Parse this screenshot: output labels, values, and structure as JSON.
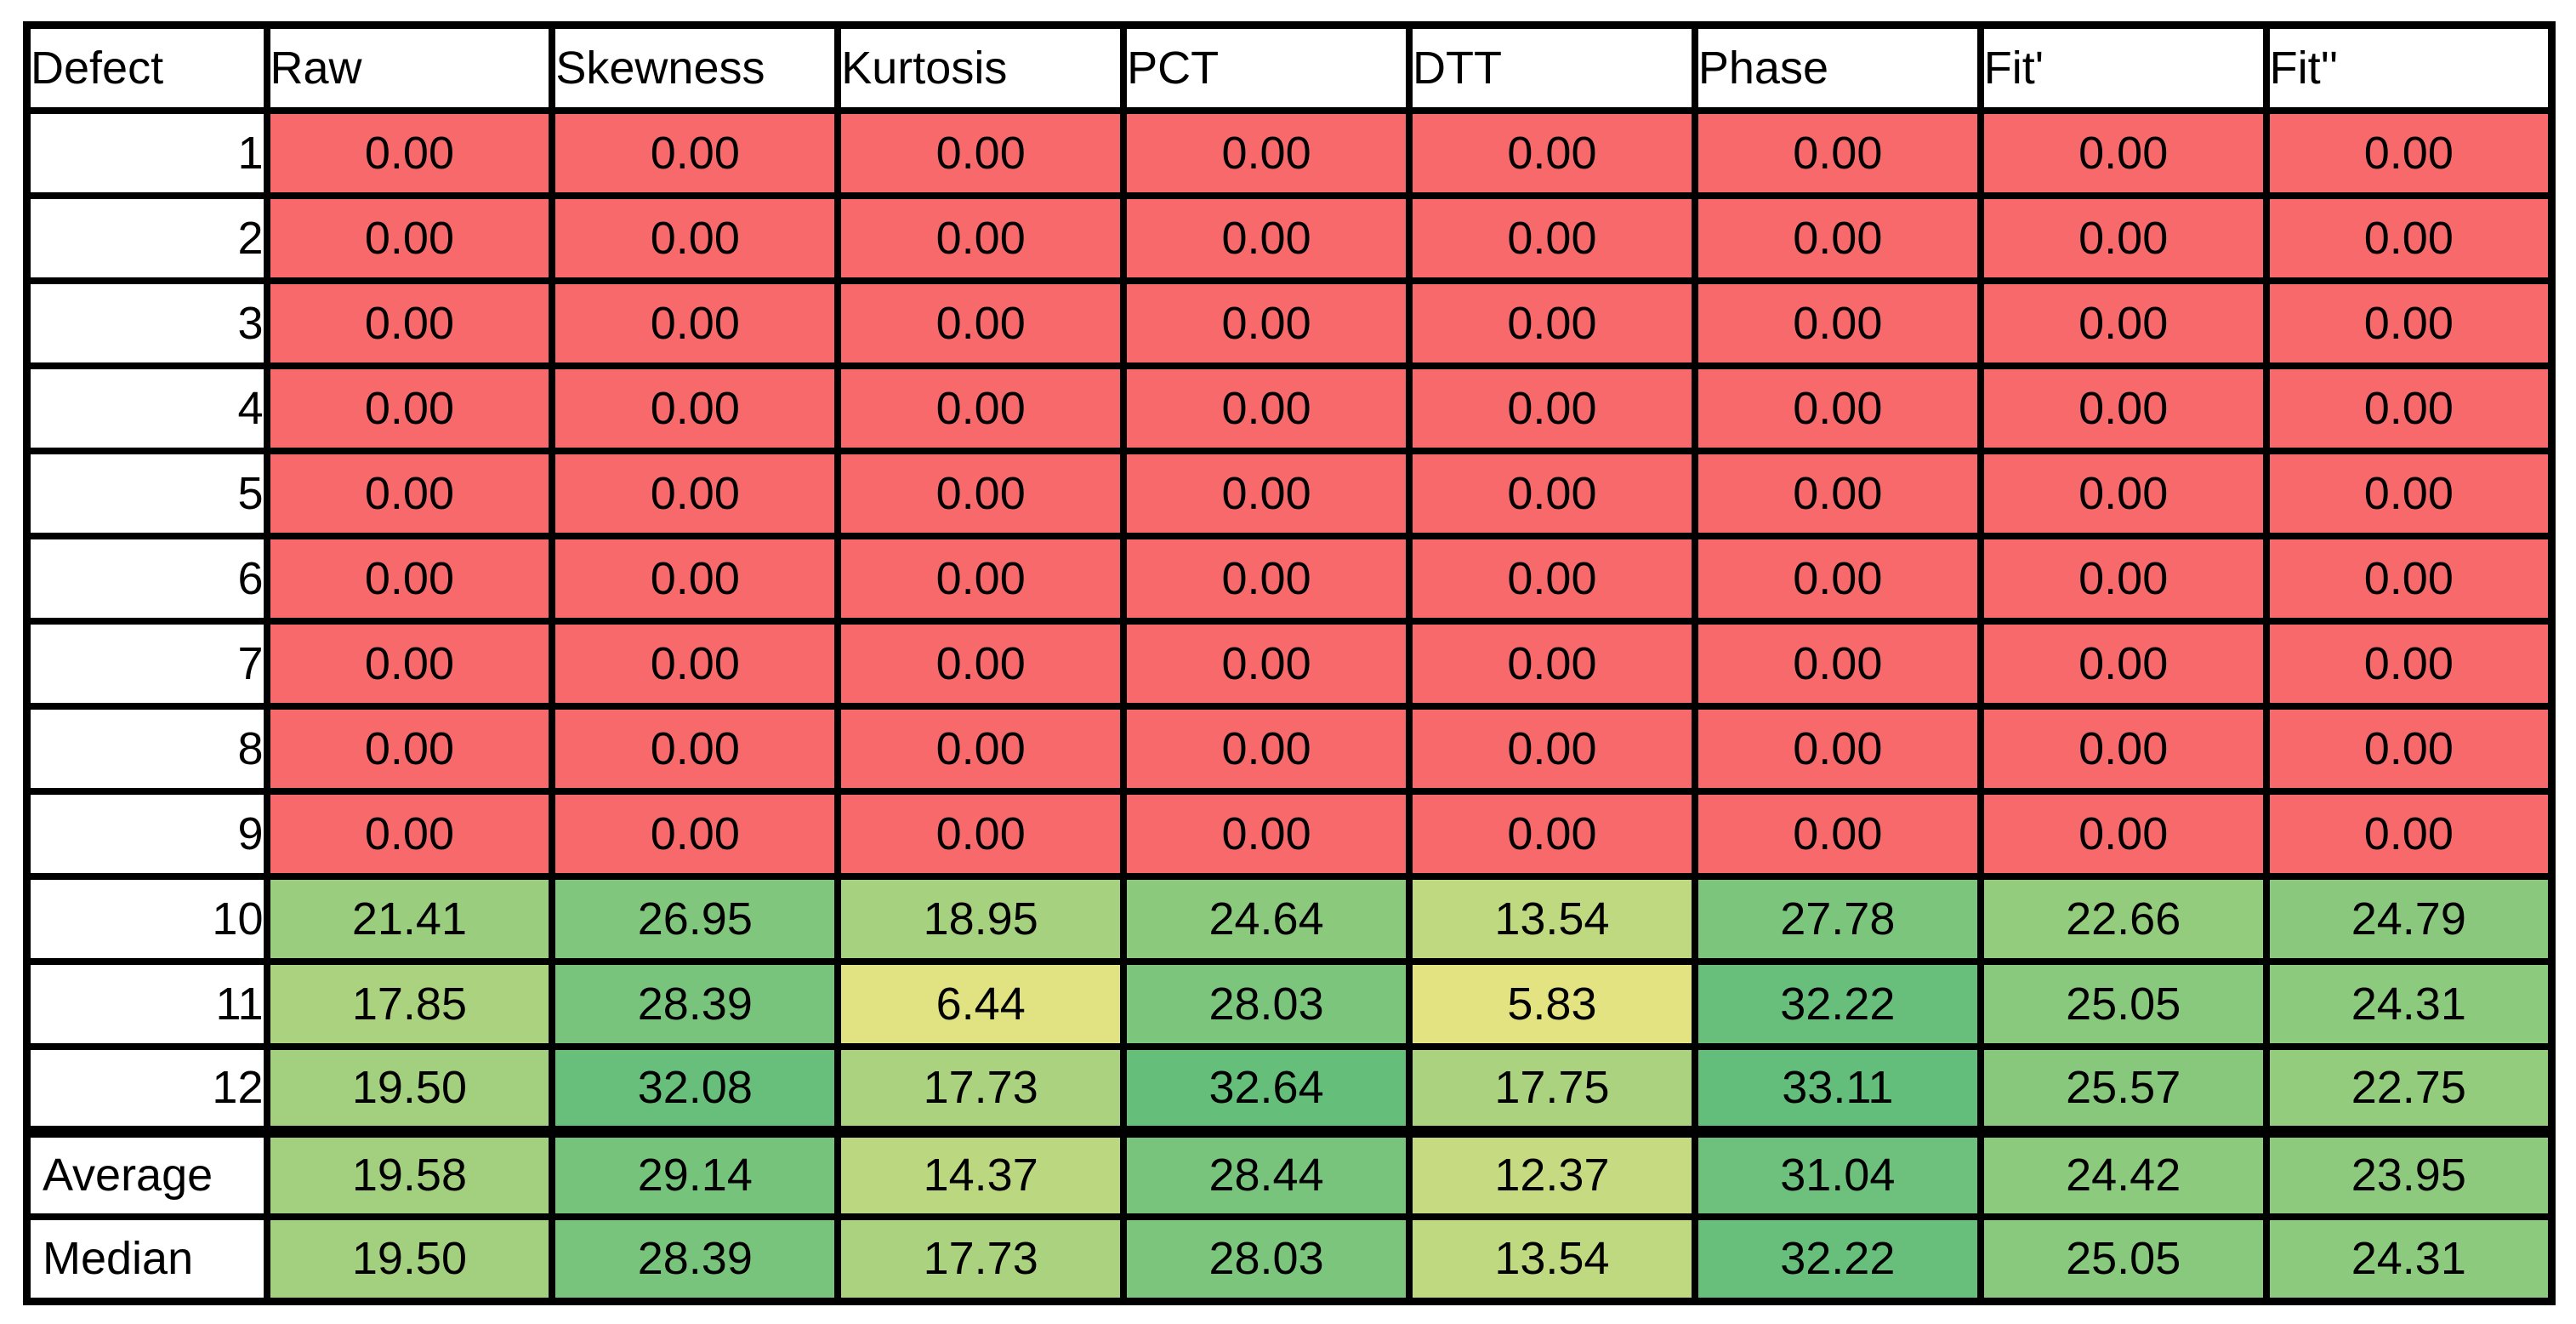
{
  "page": {
    "background": "#FFFFFF"
  },
  "table": {
    "title": "defect-metrics-table",
    "columns": [
      {
        "label": "Defect"
      },
      {
        "label": "Raw"
      },
      {
        "label": "Skewness"
      },
      {
        "label": "Kurtosis"
      },
      {
        "label": "PCT"
      },
      {
        "label": "DTT"
      },
      {
        "label": "Phase"
      },
      {
        "label": "Fit'"
      },
      {
        "label": "Fit''"
      }
    ],
    "colors": {
      "border": "#000000",
      "text": "#000000",
      "header_bg": "#FFFFFF",
      "row_label_bg": "#FFFFFF",
      "zero_cell_red": "#F8696B",
      "scale_low_yellow": "#FFEB84",
      "scale_high_green": "#63BE7B"
    },
    "rows": [
      {
        "label": "1",
        "separator": false,
        "cells": [
          {
            "value": "0.00",
            "bg": "#F8696B"
          },
          {
            "value": "0.00",
            "bg": "#F8696B"
          },
          {
            "value": "0.00",
            "bg": "#F8696B"
          },
          {
            "value": "0.00",
            "bg": "#F8696B"
          },
          {
            "value": "0.00",
            "bg": "#F8696B"
          },
          {
            "value": "0.00",
            "bg": "#F8696B"
          },
          {
            "value": "0.00",
            "bg": "#F8696B"
          },
          {
            "value": "0.00",
            "bg": "#F8696B"
          }
        ]
      },
      {
        "label": "2",
        "separator": false,
        "cells": [
          {
            "value": "0.00",
            "bg": "#F8696B"
          },
          {
            "value": "0.00",
            "bg": "#F8696B"
          },
          {
            "value": "0.00",
            "bg": "#F8696B"
          },
          {
            "value": "0.00",
            "bg": "#F8696B"
          },
          {
            "value": "0.00",
            "bg": "#F8696B"
          },
          {
            "value": "0.00",
            "bg": "#F8696B"
          },
          {
            "value": "0.00",
            "bg": "#F8696B"
          },
          {
            "value": "0.00",
            "bg": "#F8696B"
          }
        ]
      },
      {
        "label": "3",
        "separator": false,
        "cells": [
          {
            "value": "0.00",
            "bg": "#F8696B"
          },
          {
            "value": "0.00",
            "bg": "#F8696B"
          },
          {
            "value": "0.00",
            "bg": "#F8696B"
          },
          {
            "value": "0.00",
            "bg": "#F8696B"
          },
          {
            "value": "0.00",
            "bg": "#F8696B"
          },
          {
            "value": "0.00",
            "bg": "#F8696B"
          },
          {
            "value": "0.00",
            "bg": "#F8696B"
          },
          {
            "value": "0.00",
            "bg": "#F8696B"
          }
        ]
      },
      {
        "label": "4",
        "separator": false,
        "cells": [
          {
            "value": "0.00",
            "bg": "#F8696B"
          },
          {
            "value": "0.00",
            "bg": "#F8696B"
          },
          {
            "value": "0.00",
            "bg": "#F8696B"
          },
          {
            "value": "0.00",
            "bg": "#F8696B"
          },
          {
            "value": "0.00",
            "bg": "#F8696B"
          },
          {
            "value": "0.00",
            "bg": "#F8696B"
          },
          {
            "value": "0.00",
            "bg": "#F8696B"
          },
          {
            "value": "0.00",
            "bg": "#F8696B"
          }
        ]
      },
      {
        "label": "5",
        "separator": false,
        "cells": [
          {
            "value": "0.00",
            "bg": "#F8696B"
          },
          {
            "value": "0.00",
            "bg": "#F8696B"
          },
          {
            "value": "0.00",
            "bg": "#F8696B"
          },
          {
            "value": "0.00",
            "bg": "#F8696B"
          },
          {
            "value": "0.00",
            "bg": "#F8696B"
          },
          {
            "value": "0.00",
            "bg": "#F8696B"
          },
          {
            "value": "0.00",
            "bg": "#F8696B"
          },
          {
            "value": "0.00",
            "bg": "#F8696B"
          }
        ]
      },
      {
        "label": "6",
        "separator": false,
        "cells": [
          {
            "value": "0.00",
            "bg": "#F8696B"
          },
          {
            "value": "0.00",
            "bg": "#F8696B"
          },
          {
            "value": "0.00",
            "bg": "#F8696B"
          },
          {
            "value": "0.00",
            "bg": "#F8696B"
          },
          {
            "value": "0.00",
            "bg": "#F8696B"
          },
          {
            "value": "0.00",
            "bg": "#F8696B"
          },
          {
            "value": "0.00",
            "bg": "#F8696B"
          },
          {
            "value": "0.00",
            "bg": "#F8696B"
          }
        ]
      },
      {
        "label": "7",
        "separator": false,
        "cells": [
          {
            "value": "0.00",
            "bg": "#F8696B"
          },
          {
            "value": "0.00",
            "bg": "#F8696B"
          },
          {
            "value": "0.00",
            "bg": "#F8696B"
          },
          {
            "value": "0.00",
            "bg": "#F8696B"
          },
          {
            "value": "0.00",
            "bg": "#F8696B"
          },
          {
            "value": "0.00",
            "bg": "#F8696B"
          },
          {
            "value": "0.00",
            "bg": "#F8696B"
          },
          {
            "value": "0.00",
            "bg": "#F8696B"
          }
        ]
      },
      {
        "label": "8",
        "separator": false,
        "cells": [
          {
            "value": "0.00",
            "bg": "#F8696B"
          },
          {
            "value": "0.00",
            "bg": "#F8696B"
          },
          {
            "value": "0.00",
            "bg": "#F8696B"
          },
          {
            "value": "0.00",
            "bg": "#F8696B"
          },
          {
            "value": "0.00",
            "bg": "#F8696B"
          },
          {
            "value": "0.00",
            "bg": "#F8696B"
          },
          {
            "value": "0.00",
            "bg": "#F8696B"
          },
          {
            "value": "0.00",
            "bg": "#F8696B"
          }
        ]
      },
      {
        "label": "9",
        "separator": false,
        "cells": [
          {
            "value": "0.00",
            "bg": "#F8696B"
          },
          {
            "value": "0.00",
            "bg": "#F8696B"
          },
          {
            "value": "0.00",
            "bg": "#F8696B"
          },
          {
            "value": "0.00",
            "bg": "#F8696B"
          },
          {
            "value": "0.00",
            "bg": "#F8696B"
          },
          {
            "value": "0.00",
            "bg": "#F8696B"
          },
          {
            "value": "0.00",
            "bg": "#F8696B"
          },
          {
            "value": "0.00",
            "bg": "#F8696B"
          }
        ]
      },
      {
        "label": "10",
        "separator": false,
        "cells": [
          {
            "value": "21.41",
            "bg": "#9ACE7E"
          },
          {
            "value": "26.95",
            "bg": "#80C67D"
          },
          {
            "value": "18.95",
            "bg": "#A6D17F"
          },
          {
            "value": "24.64",
            "bg": "#8BCA7D"
          },
          {
            "value": "13.54",
            "bg": "#BFD980"
          },
          {
            "value": "27.78",
            "bg": "#7CC57C"
          },
          {
            "value": "22.66",
            "bg": "#94CC7E"
          },
          {
            "value": "24.79",
            "bg": "#8AC97D"
          }
        ]
      },
      {
        "label": "11",
        "separator": false,
        "cells": [
          {
            "value": "17.85",
            "bg": "#ABD37F"
          },
          {
            "value": "28.39",
            "bg": "#79C47C"
          },
          {
            "value": "6.44",
            "bg": "#E1E282"
          },
          {
            "value": "28.03",
            "bg": "#7BC57C"
          },
          {
            "value": "5.83",
            "bg": "#E4E382"
          },
          {
            "value": "32.22",
            "bg": "#67BF7B"
          },
          {
            "value": "25.05",
            "bg": "#89C97D"
          },
          {
            "value": "24.31",
            "bg": "#8CCA7D"
          }
        ]
      },
      {
        "label": "12",
        "separator": false,
        "cells": [
          {
            "value": "19.50",
            "bg": "#A3D07F"
          },
          {
            "value": "32.08",
            "bg": "#68BF7B"
          },
          {
            "value": "17.73",
            "bg": "#ABD37F"
          },
          {
            "value": "32.64",
            "bg": "#65BF7B"
          },
          {
            "value": "17.75",
            "bg": "#ABD37F"
          },
          {
            "value": "33.11",
            "bg": "#63BE7B"
          },
          {
            "value": "25.57",
            "bg": "#87C87D"
          },
          {
            "value": "22.75",
            "bg": "#94CC7E"
          }
        ]
      },
      {
        "label": "Average",
        "separator": true,
        "cells": [
          {
            "value": "19.58",
            "bg": "#A3D07F"
          },
          {
            "value": "29.14",
            "bg": "#76C37C"
          },
          {
            "value": "14.37",
            "bg": "#BBD780"
          },
          {
            "value": "28.44",
            "bg": "#79C47C"
          },
          {
            "value": "12.37",
            "bg": "#C5DA81"
          },
          {
            "value": "31.04",
            "bg": "#6DC17C"
          },
          {
            "value": "24.42",
            "bg": "#8CCA7D"
          },
          {
            "value": "23.95",
            "bg": "#8ECA7D"
          }
        ]
      },
      {
        "label": "Median",
        "separator": false,
        "cells": [
          {
            "value": "19.50",
            "bg": "#A3D07F"
          },
          {
            "value": "28.39",
            "bg": "#79C47C"
          },
          {
            "value": "17.73",
            "bg": "#ABD37F"
          },
          {
            "value": "28.03",
            "bg": "#7BC57C"
          },
          {
            "value": "13.54",
            "bg": "#BFD980"
          },
          {
            "value": "32.22",
            "bg": "#67BF7B"
          },
          {
            "value": "25.05",
            "bg": "#89C97D"
          },
          {
            "value": "24.31",
            "bg": "#8CCA7D"
          }
        ]
      }
    ]
  }
}
